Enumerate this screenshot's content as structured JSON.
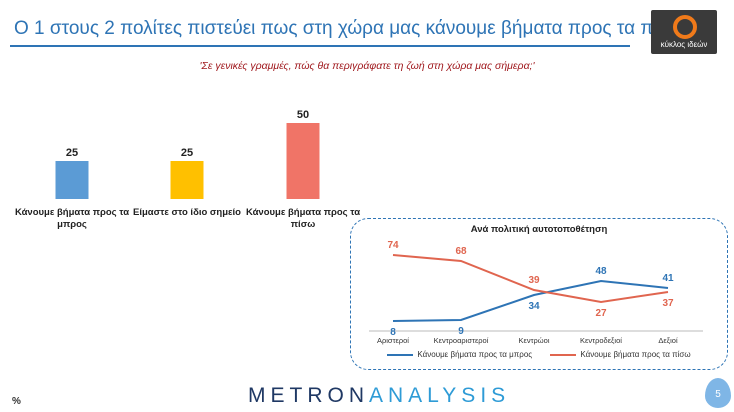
{
  "header": {
    "title": "Ο 1 στους 2 πολίτες πιστεύει πως στη χώρα μας κάνουμε βήματα προς τα πίσω",
    "logo_text": "κύκλος ιδεών"
  },
  "subtitle": "'Σε γενικές γραμμές, πώς θα περιγράφατε τη ζωή στη χώρα μας σήμερα;'",
  "chart_data": [
    {
      "type": "bar",
      "categories": [
        "Κάνουμε βήματα προς τα μπρος",
        "Είμαστε στο ίδιο σημείο",
        "Κάνουμε βήματα προς τα πίσω"
      ],
      "values": [
        25,
        25,
        50
      ],
      "colors": [
        "#5b9bd5",
        "#ffc000",
        "#f07467"
      ],
      "ylim": [
        0,
        50
      ]
    },
    {
      "type": "line",
      "title": "Ανά πολιτική αυτοτοποθέτηση",
      "categories": [
        "Αριστεροί",
        "Κεντροαριστεροί",
        "Κεντρώοι",
        "Κεντροδεξιοί",
        "Δεξιοί"
      ],
      "series": [
        {
          "name": "Κάνουμε βήματα προς τα μπρος",
          "values": [
            8,
            9,
            34,
            48,
            41
          ],
          "color": "#2e74b5"
        },
        {
          "name": "Κάνουμε βήματα προς τα πίσω",
          "values": [
            74,
            68,
            39,
            27,
            37
          ],
          "color": "#e0654f"
        }
      ],
      "ylim": [
        0,
        80
      ]
    }
  ],
  "footer": {
    "percent_sign": "%",
    "brand_part1": "METRON",
    "brand_part2": "ANALYSIS",
    "page_number": "5"
  }
}
